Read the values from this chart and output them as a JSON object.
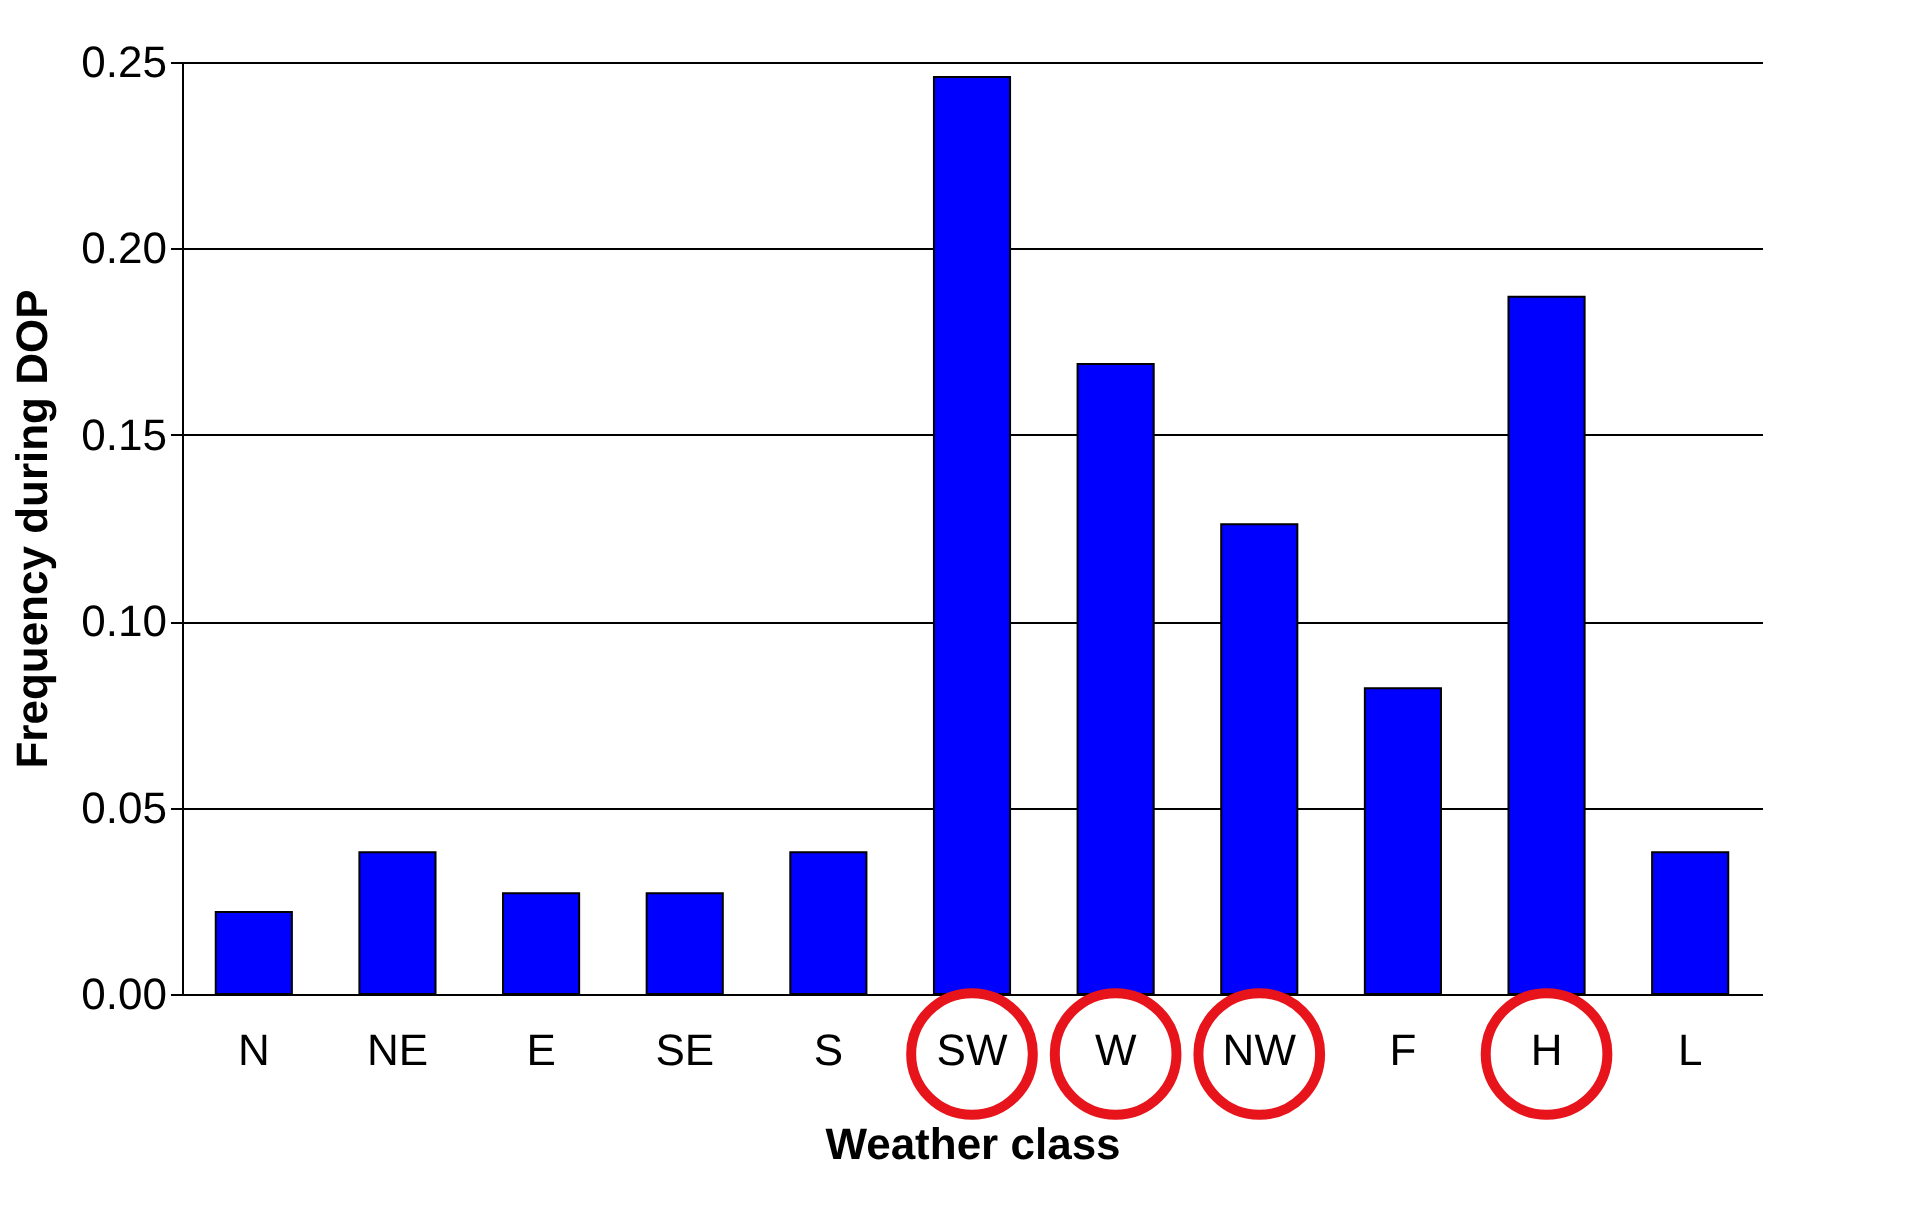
{
  "chart_data": {
    "type": "bar",
    "xlabel": "Weather class",
    "ylabel": "Frequency during DOP",
    "categories": [
      "N",
      "NE",
      "E",
      "SE",
      "S",
      "SW",
      "W",
      "NW",
      "F",
      "H",
      "L"
    ],
    "values": [
      0.022,
      0.038,
      0.027,
      0.027,
      0.038,
      0.246,
      0.169,
      0.126,
      0.082,
      0.187,
      0.038
    ],
    "color": "#0000ff",
    "ylim": [
      0,
      0.25
    ],
    "yticks": [
      {
        "value": 0,
        "label": "0.00"
      },
      {
        "value": 0.05,
        "label": "0.05"
      },
      {
        "value": 0.1,
        "label": "0.10"
      },
      {
        "value": 0.15,
        "label": "0.15"
      },
      {
        "value": 0.2,
        "label": "0.20"
      },
      {
        "value": 0.25,
        "label": "0.25"
      }
    ],
    "grid": "y"
  }
}
